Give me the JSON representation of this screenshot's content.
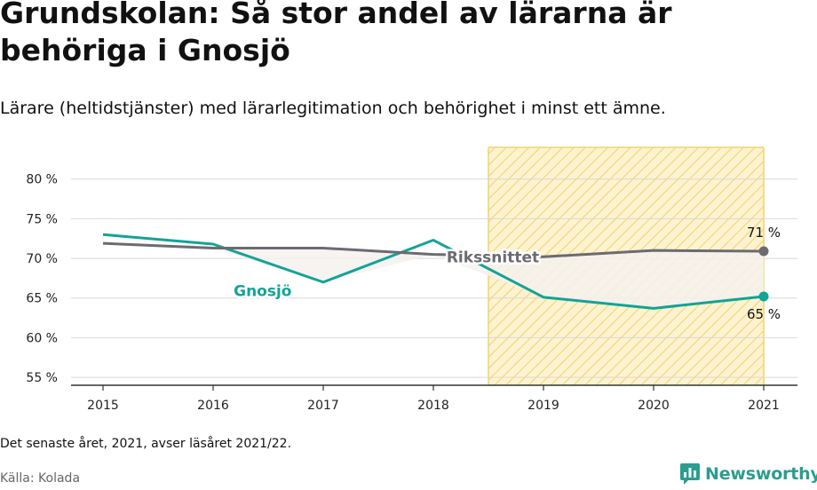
{
  "title": "Grundskolan: Så stor andel av lärarna är behöriga i Gnosjö",
  "subtitle": "Lärare (heltidstjänster) med lärarlegitimation och behörighet i minst ett ämne.",
  "note": "Det senaste året, 2021, avser läsåret 2021/22.",
  "source": "Källa: Kolada",
  "brand": {
    "name": "Newsworthy",
    "color": "#2a9d8f"
  },
  "colors": {
    "gnosjo": "#13a397",
    "riket": "#6b6b70",
    "highlight_fill": "#fdf3d0",
    "highlight_stripe": "#f3d26a",
    "gap_fill": "#f4f1ef",
    "grid": "#d8d8d8",
    "axis": "#333333"
  },
  "chart_data": {
    "type": "line",
    "x": [
      2015,
      2016,
      2017,
      2018,
      2019,
      2020,
      2021
    ],
    "x_tick_labels": [
      "2015",
      "2016",
      "2017",
      "2018",
      "2019",
      "2020",
      "2021"
    ],
    "ylim": [
      54,
      84
    ],
    "y_ticks": [
      55,
      60,
      65,
      70,
      75,
      80
    ],
    "y_tick_labels": [
      "55 %",
      "60 %",
      "65 %",
      "70 %",
      "75 %",
      "80 %"
    ],
    "grid": true,
    "highlight_range": [
      2018.5,
      2021
    ],
    "series": [
      {
        "name": "Gnosjö",
        "key": "gnosjo",
        "values": [
          73.0,
          71.8,
          67.0,
          72.3,
          65.1,
          63.7,
          65.2
        ]
      },
      {
        "name": "Rikssnittet",
        "key": "riket",
        "values": [
          71.9,
          71.3,
          71.3,
          70.5,
          70.2,
          71.0,
          70.9
        ]
      }
    ],
    "end_labels": {
      "riket": "71 %",
      "gnosjo": "65 %"
    }
  }
}
